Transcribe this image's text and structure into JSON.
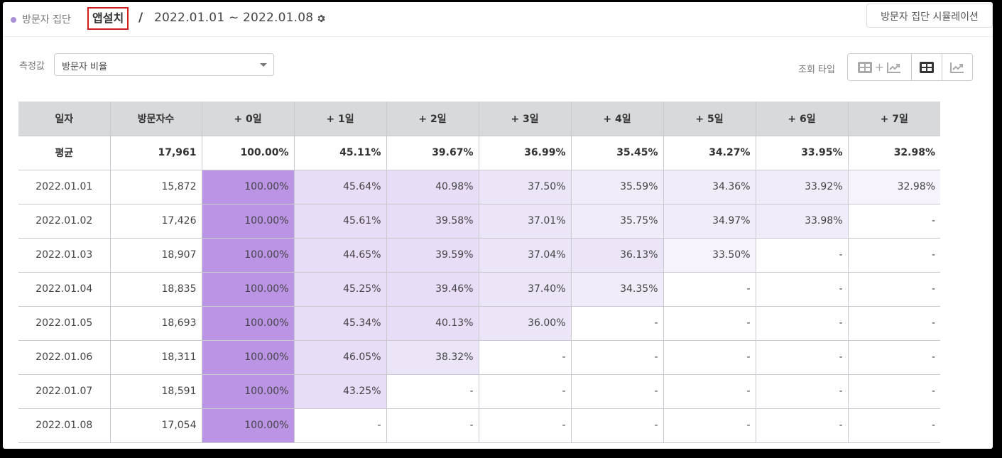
{
  "header": {
    "group_label": "방문자 집단",
    "app_name": "앱설치",
    "separator": "/",
    "date_range": "2022.01.01 ~ 2022.01.08",
    "settings_icon": "gear-icon",
    "simulation_button": "방문자 집단 시뮬레이션",
    "accent_color": "#a98fd6",
    "highlight_border_color": "#d01c1c"
  },
  "controls": {
    "measure_label": "측정값",
    "measure_value": "방문자 비율",
    "view_type_label": "조회 타입",
    "view_types": [
      {
        "name": "table-plus-chart",
        "icons": [
          "table-icon",
          "chart-icon"
        ],
        "active": false
      },
      {
        "name": "table",
        "icons": [
          "table-icon"
        ],
        "active": true
      },
      {
        "name": "chart",
        "icons": [
          "chart-icon"
        ],
        "active": false
      }
    ]
  },
  "table": {
    "columns": [
      "일자",
      "방문자수",
      "+ 0일",
      "+ 1일",
      "+ 2일",
      "+ 3일",
      "+ 4일",
      "+ 5일",
      "+ 6일",
      "+ 7일"
    ],
    "average": {
      "label": "평균",
      "visitors": "17,961",
      "values": [
        "100.00%",
        "45.11%",
        "39.67%",
        "36.99%",
        "35.45%",
        "34.27%",
        "33.95%",
        "32.98%"
      ]
    },
    "rows": [
      {
        "date": "2022.01.01",
        "visitors": "15,872",
        "values": [
          "100.00%",
          "45.64%",
          "40.98%",
          "37.50%",
          "35.59%",
          "34.36%",
          "33.92%",
          "32.98%"
        ]
      },
      {
        "date": "2022.01.02",
        "visitors": "17,426",
        "values": [
          "100.00%",
          "45.61%",
          "39.58%",
          "37.01%",
          "35.75%",
          "34.97%",
          "33.98%",
          "-"
        ]
      },
      {
        "date": "2022.01.03",
        "visitors": "18,907",
        "values": [
          "100.00%",
          "44.65%",
          "39.59%",
          "37.04%",
          "36.13%",
          "33.50%",
          "-",
          "-"
        ]
      },
      {
        "date": "2022.01.04",
        "visitors": "18,835",
        "values": [
          "100.00%",
          "45.25%",
          "39.46%",
          "37.40%",
          "34.35%",
          "-",
          "-",
          "-"
        ]
      },
      {
        "date": "2022.01.05",
        "visitors": "18,693",
        "values": [
          "100.00%",
          "45.34%",
          "40.13%",
          "36.00%",
          "-",
          "-",
          "-",
          "-"
        ]
      },
      {
        "date": "2022.01.06",
        "visitors": "18,311",
        "values": [
          "100.00%",
          "46.05%",
          "38.32%",
          "-",
          "-",
          "-",
          "-",
          "-"
        ]
      },
      {
        "date": "2022.01.07",
        "visitors": "18,591",
        "values": [
          "100.00%",
          "43.25%",
          "-",
          "-",
          "-",
          "-",
          "-",
          "-"
        ]
      },
      {
        "date": "2022.01.08",
        "visitors": "17,054",
        "values": [
          "100.00%",
          "-",
          "-",
          "-",
          "-",
          "-",
          "-",
          "-"
        ]
      }
    ],
    "heat_colors": {
      "day0": "#bb94e6",
      "high": "#e7ddf7",
      "mid": "#ece5f8",
      "low": "#f1ecfa",
      "lowest": "#f6f3fc",
      "empty": "#ffffff"
    }
  }
}
